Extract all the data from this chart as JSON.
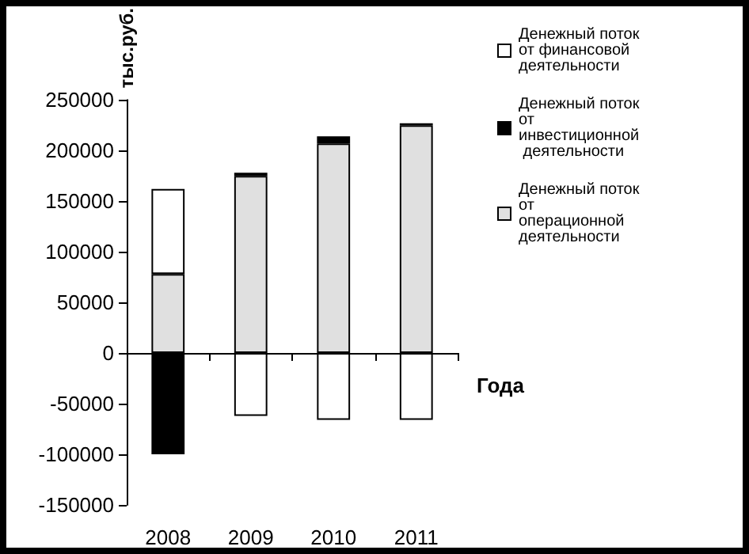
{
  "chart_data": {
    "type": "bar",
    "stacked": true,
    "ylabel": "тыс.руб.",
    "xlabel": "Года",
    "categories": [
      "2008",
      "2009",
      "2010",
      "2011"
    ],
    "series": [
      {
        "name": "Денежный поток от операционной деятельности",
        "color": "#e0e0e0",
        "values": [
          78000,
          175000,
          207000,
          225000
        ]
      },
      {
        "name": "Денежный поток от инвестиционной деятельности",
        "color": "#000000",
        "values": [
          -100000,
          3000,
          7000,
          2000
        ]
      },
      {
        "name": "Денежный поток от финансовой деятельности",
        "color": "#ffffff",
        "values": [
          84000,
          -62000,
          -66000,
          -66000
        ]
      }
    ],
    "ylim": [
      -150000,
      250000
    ],
    "yticks": [
      -150000,
      -100000,
      -50000,
      0,
      50000,
      100000,
      150000,
      200000,
      250000
    ],
    "legend": "right"
  }
}
